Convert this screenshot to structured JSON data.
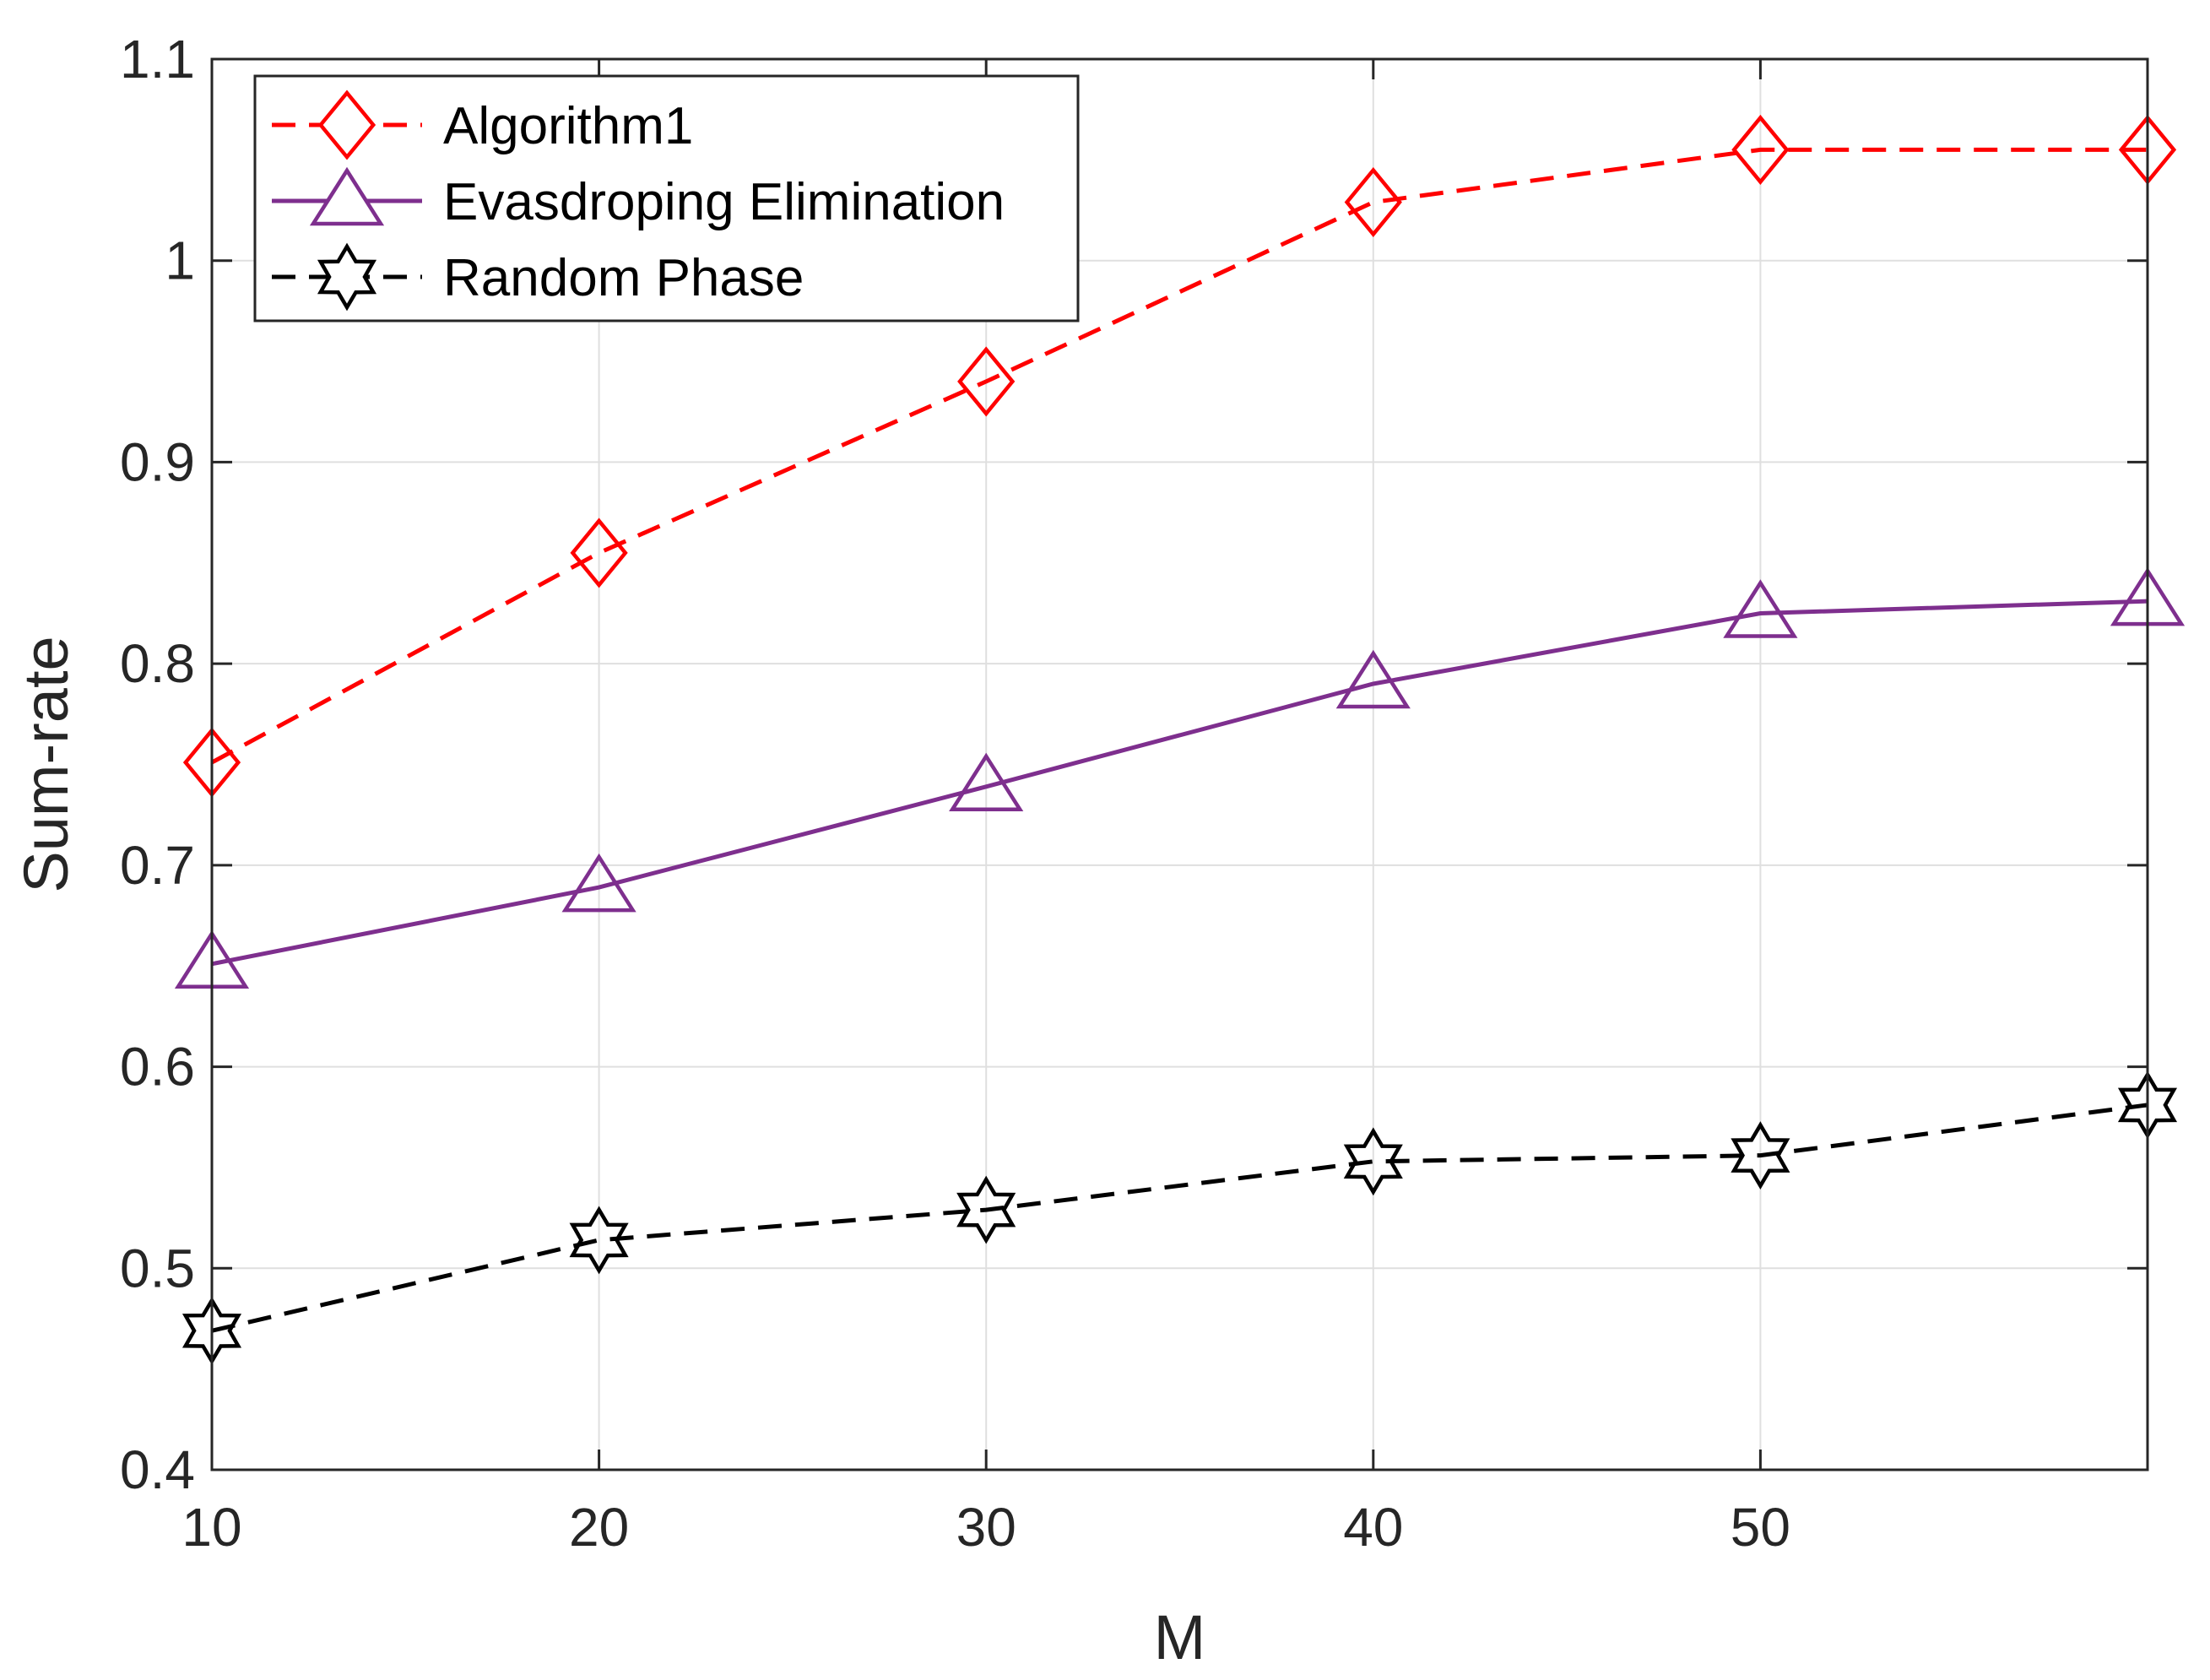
{
  "chart_data": {
    "type": "line",
    "title": "",
    "xlabel": "M",
    "ylabel": "Sum-rate",
    "xlim": [
      10,
      60
    ],
    "ylim": [
      0.4,
      1.1
    ],
    "x": [
      10,
      20,
      30,
      40,
      50,
      60
    ],
    "xticks": [
      10,
      20,
      30,
      40,
      50
    ],
    "xtick_labels": [
      "10",
      "20",
      "30",
      "40",
      "50"
    ],
    "yticks": [
      0.4,
      0.5,
      0.6,
      0.7,
      0.8,
      0.9,
      1.0,
      1.1
    ],
    "ytick_labels": [
      "0.4",
      "0.5",
      "0.6",
      "0.7",
      "0.8",
      "0.9",
      "1",
      "1.1"
    ],
    "grid": true,
    "legend_position": "top-left",
    "series": [
      {
        "name": "Algorithm1",
        "values": [
          0.751,
          0.855,
          0.94,
          1.029,
          1.055,
          1.055
        ],
        "color": "#ff0000",
        "line_style": "dashed",
        "marker": "diamond"
      },
      {
        "name": "Evasdroping Elimination",
        "values": [
          0.651,
          0.689,
          0.739,
          0.79,
          0.825,
          0.831
        ],
        "color": "#7e2f8e",
        "line_style": "solid",
        "marker": "triangle"
      },
      {
        "name": "Random Phase",
        "values": [
          0.469,
          0.514,
          0.529,
          0.553,
          0.556,
          0.581
        ],
        "color": "#000000",
        "line_style": "dashed",
        "marker": "hexagram"
      }
    ]
  }
}
